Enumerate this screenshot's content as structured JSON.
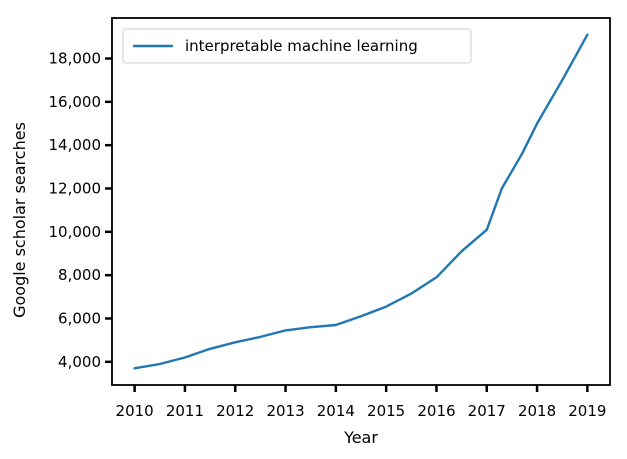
{
  "chart_data": {
    "type": "line",
    "title": "",
    "xlabel": "Year",
    "ylabel": "Google scholar searches",
    "x": [
      2010,
      2010.5,
      2011,
      2011.5,
      2012,
      2012.5,
      2013,
      2013.5,
      2014,
      2014.5,
      2015,
      2015.5,
      2016,
      2016.5,
      2017,
      2017.3,
      2017.7,
      2018,
      2018.5,
      2019
    ],
    "series": [
      {
        "name": "interpretable machine learning",
        "color": "#1f77b4",
        "values": [
          3700,
          3900,
          4200,
          4600,
          4900,
          5150,
          5450,
          5600,
          5700,
          6100,
          6550,
          7150,
          7900,
          9100,
          10100,
          12000,
          13600,
          15000,
          17000,
          19100
        ]
      }
    ],
    "xticks": [
      2010,
      2011,
      2012,
      2013,
      2014,
      2015,
      2016,
      2017,
      2018,
      2019
    ],
    "yticks": [
      4000,
      6000,
      8000,
      10000,
      12000,
      14000,
      16000,
      18000
    ],
    "ytick_labels": [
      "4,000",
      "6,000",
      "8,000",
      "10,000",
      "12,000",
      "14,000",
      "16,000",
      "18,000"
    ],
    "xlim": [
      2009.55,
      2019.45
    ],
    "ylim": [
      2930,
      19870
    ],
    "grid": false,
    "legend": "top-left"
  }
}
